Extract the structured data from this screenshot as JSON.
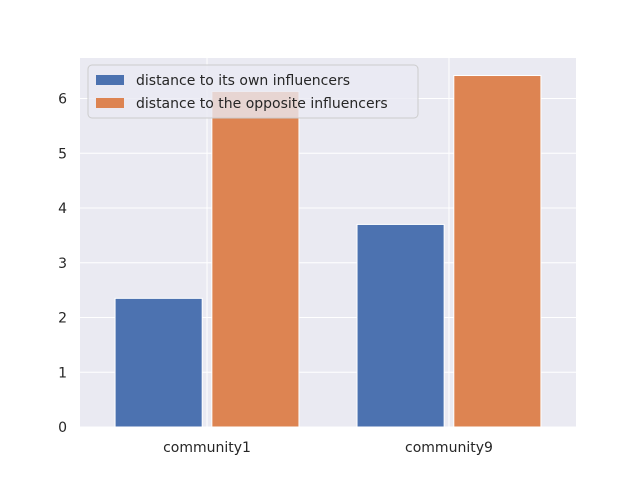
{
  "chart_data": {
    "type": "bar",
    "categories": [
      "community1",
      "community9"
    ],
    "series": [
      {
        "name": "distance to its own influencers",
        "values": [
          2.35,
          3.7
        ],
        "color": "#4c72b0"
      },
      {
        "name": "distance to the opposite influencers",
        "values": [
          6.13,
          6.42
        ],
        "color": "#dd8452"
      }
    ],
    "yticks": [
      0,
      1,
      2,
      3,
      4,
      5,
      6
    ],
    "ylim": [
      0,
      6.74
    ],
    "grid": true,
    "legend_position": "upper-left",
    "background_color": "#eaeaf2",
    "grid_color": "#ffffff"
  }
}
